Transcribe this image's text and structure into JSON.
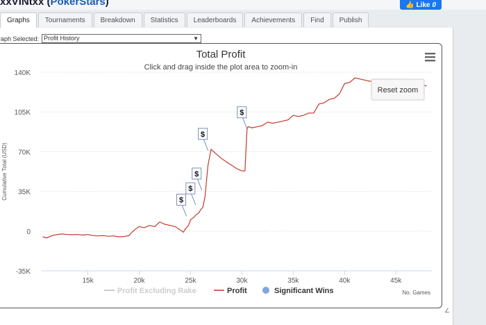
{
  "header": {
    "player_name": "xxVINtxx",
    "site_prefix": " (",
    "site": "PokerStars",
    "site_suffix": ")"
  },
  "facebook": {
    "label": "Like",
    "count": "0"
  },
  "tabs": [
    {
      "label": "Graphs",
      "active": true
    },
    {
      "label": "Tournaments"
    },
    {
      "label": "Breakdown"
    },
    {
      "label": "Statistics"
    },
    {
      "label": "Leaderboards"
    },
    {
      "label": "Achievements"
    },
    {
      "label": "Find"
    },
    {
      "label": "Publish"
    }
  ],
  "graph_selector": {
    "label": "raph Selected:",
    "value": "Profit History"
  },
  "chart": {
    "menu_icon": "hamburger-icon",
    "reset_zoom": "Reset zoom",
    "no_games_label": "No. Games",
    "colors": {
      "profit": "#c0392b",
      "excl_rake": "#cccccc",
      "wins": "#7fa6dd"
    },
    "flag_symbol": "$"
  },
  "chart_data": {
    "type": "line",
    "title": "Total Profit",
    "subtitle": "Click and drag inside the plot area to zoom-in",
    "ylabel": "Cumulative Total (USD)",
    "xlabel": "",
    "ylim": [
      -35000,
      140000
    ],
    "xlim": [
      10500,
      48500
    ],
    "y_ticks": [
      {
        "v": 140000,
        "label": "140K"
      },
      {
        "v": 105000,
        "label": "105K"
      },
      {
        "v": 70000,
        "label": "70K"
      },
      {
        "v": 35000,
        "label": "35K"
      },
      {
        "v": 0,
        "label": "0"
      },
      {
        "v": -35000,
        "label": "-35K"
      }
    ],
    "x_ticks": [
      {
        "v": 15000,
        "label": "15k"
      },
      {
        "v": 20000,
        "label": "20k"
      },
      {
        "v": 25000,
        "label": "25k"
      },
      {
        "v": 30000,
        "label": "30k"
      },
      {
        "v": 35000,
        "label": "35k"
      },
      {
        "v": 40000,
        "label": "40k"
      },
      {
        "v": 45000,
        "label": "45k"
      }
    ],
    "legend": [
      {
        "name": "Profit Excluding Rake",
        "kind": "line",
        "muted": true
      },
      {
        "name": "Profit",
        "kind": "line"
      },
      {
        "name": "Significant Wins",
        "kind": "marker"
      }
    ],
    "series": [
      {
        "name": "Profit",
        "x": [
          10600,
          11000,
          11500,
          12000,
          12500,
          13000,
          13500,
          14000,
          14500,
          15000,
          15500,
          16000,
          16500,
          17000,
          17500,
          18000,
          18500,
          19000,
          19300,
          19600,
          20000,
          20500,
          21000,
          21500,
          22000,
          22500,
          23000,
          23500,
          24000,
          24300,
          24500,
          24800,
          25000,
          25300,
          25500,
          25800,
          26000,
          26200,
          26400,
          26700,
          27000,
          27500,
          28000,
          28500,
          29000,
          29500,
          30000,
          30300,
          30500,
          30600,
          31000,
          31500,
          32000,
          32500,
          33000,
          33500,
          34000,
          34500,
          35000,
          35500,
          36000,
          36500,
          37000,
          37500,
          38000,
          38500,
          39000,
          39500,
          40000,
          40500,
          41000,
          41500,
          42000,
          42500,
          43000,
          44000,
          45000,
          46000,
          47000,
          48000
        ],
        "y": [
          -5000,
          -6000,
          -4000,
          -3000,
          -2500,
          -3000,
          -3200,
          -3000,
          -3500,
          -3000,
          -4000,
          -4200,
          -4000,
          -4500,
          -4200,
          -5000,
          -4800,
          -4000,
          -1000,
          1500,
          4000,
          3000,
          5000,
          4000,
          8000,
          6000,
          5000,
          4000,
          1000,
          -1000,
          2000,
          5000,
          10000,
          12000,
          14000,
          16000,
          19000,
          21000,
          30000,
          58000,
          72000,
          68000,
          64000,
          61000,
          58000,
          55000,
          53000,
          53000,
          90000,
          92000,
          91000,
          92000,
          93000,
          96000,
          95000,
          96000,
          97000,
          98000,
          102000,
          101000,
          102000,
          104000,
          104000,
          112000,
          113000,
          116000,
          117000,
          121000,
          130000,
          131000,
          135000,
          134000,
          133000,
          132000,
          133000,
          131000,
          130000,
          129000,
          129000,
          128000
        ]
      }
    ],
    "significant_wins": [
      {
        "x": 24600,
        "y": 13000
      },
      {
        "x": 25500,
        "y": 23000
      },
      {
        "x": 26100,
        "y": 36000
      },
      {
        "x": 26700,
        "y": 71000
      },
      {
        "x": 30500,
        "y": 90000
      }
    ]
  }
}
